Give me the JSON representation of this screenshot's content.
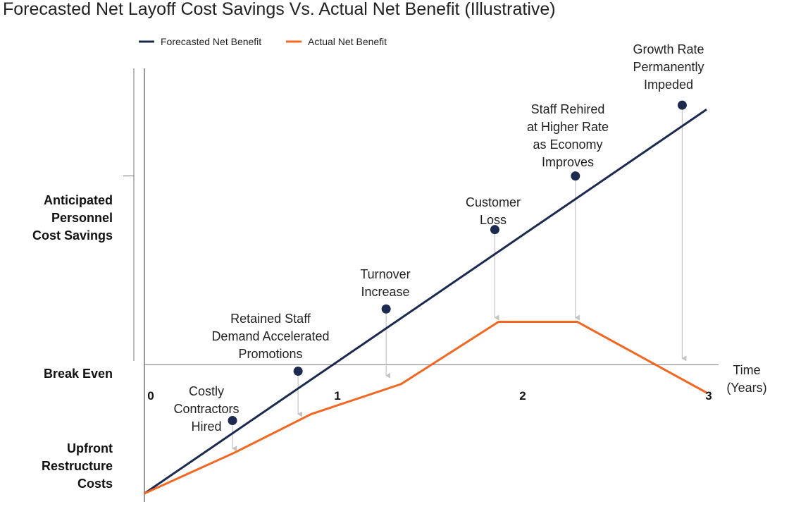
{
  "chart_data": {
    "type": "line",
    "title": "Forecasted Net Layoff Cost Savings Vs. Actual Net Benefit (Illustrative)",
    "xlabel": [
      "Time",
      "(Years)"
    ],
    "x_ticks": [
      "0",
      "1",
      "2",
      "3"
    ],
    "xlim": [
      0,
      3
    ],
    "ylim": [
      -0.6,
      1.25
    ],
    "grid": false,
    "legend_position": "top-left",
    "y_axis_labels": [
      {
        "lines": [
          "Anticipated",
          "Personnel",
          "Cost Savings"
        ],
        "value": 0.88
      },
      {
        "lines": [
          "Break Even"
        ],
        "value": 0
      },
      {
        "lines": [
          "Upfront",
          "Restructure",
          "Costs"
        ],
        "value": -0.4
      }
    ],
    "series": [
      {
        "name": "Forecasted Net Benefit",
        "color": "#1b2a4e",
        "points": [
          [
            0,
            -0.6
          ],
          [
            3,
            1.19
          ]
        ],
        "markers": [
          [
            0.47,
            -0.26
          ],
          [
            0.82,
            -0.03
          ],
          [
            1.29,
            0.26
          ],
          [
            1.87,
            0.63
          ],
          [
            2.3,
            0.88
          ],
          [
            2.87,
            1.21
          ]
        ]
      },
      {
        "name": "Actual Net Benefit",
        "color": "#f26722",
        "points": [
          [
            0,
            -0.6
          ],
          [
            0.48,
            -0.41
          ],
          [
            0.89,
            -0.23
          ],
          [
            1.37,
            -0.09
          ],
          [
            1.89,
            0.2
          ],
          [
            2.31,
            0.2
          ],
          [
            3,
            -0.13
          ]
        ]
      }
    ],
    "annotations": [
      {
        "lines": [
          "Costly",
          "Contractors",
          "Hired"
        ],
        "marker": 0,
        "target": [
          0.47,
          -0.41
        ]
      },
      {
        "lines": [
          "Retained Staff",
          "Demand Accelerated",
          "Promotions"
        ],
        "marker": 1,
        "target": [
          0.82,
          -0.25
        ]
      },
      {
        "lines": [
          "Turnover",
          "Increase"
        ],
        "marker": 2,
        "target": [
          1.29,
          -0.07
        ]
      },
      {
        "lines": [
          "Customer",
          "Loss"
        ],
        "marker": 3,
        "target": [
          1.87,
          0.2
        ]
      },
      {
        "lines": [
          "Staff Rehired",
          "at Higher Rate",
          "as Economy",
          "Improves"
        ],
        "marker": 4,
        "target": [
          2.3,
          0.2
        ]
      },
      {
        "lines": [
          "Growth Rate",
          "Permanently",
          "Impeded"
        ],
        "marker": 5,
        "target": [
          2.87,
          0.01
        ]
      }
    ]
  }
}
